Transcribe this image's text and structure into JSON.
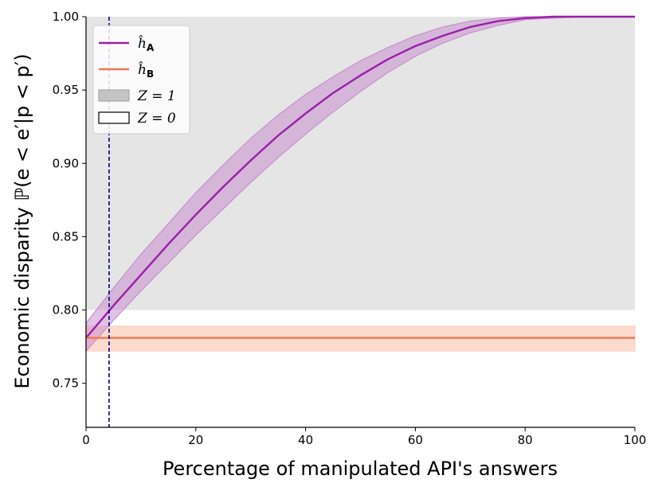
{
  "chart_data": {
    "type": "line",
    "xlabel": "Percentage of manipulated API's answers",
    "ylabel": "Economic disparity ℙ(e < e′|p < p′)",
    "xlim": [
      0,
      100
    ],
    "ylim": [
      0.72,
      1.0
    ],
    "x_ticks": [
      "0",
      "20",
      "40",
      "60",
      "80",
      "100"
    ],
    "y_ticks": [
      "0.75",
      "0.80",
      "0.85",
      "0.90",
      "0.95",
      "1.00"
    ],
    "shaded_region": {
      "label": "Z = 1",
      "x_range": [
        0,
        100
      ],
      "y_range": [
        0.8,
        1.0
      ],
      "color": "#e5e5e5"
    },
    "vertical_line": {
      "x": 4.2,
      "color": "#00007f",
      "style": "dashed"
    },
    "series": [
      {
        "name": "ĥ_A",
        "color": "#9b1fa8",
        "band_color": "#c88fcf",
        "x": [
          0,
          5,
          10,
          15,
          20,
          25,
          30,
          35,
          40,
          45,
          50,
          55,
          60,
          65,
          70,
          75,
          80,
          85,
          90,
          95,
          100
        ],
        "values": [
          0.781,
          0.803,
          0.824,
          0.845,
          0.865,
          0.884,
          0.902,
          0.919,
          0.934,
          0.948,
          0.96,
          0.971,
          0.98,
          0.987,
          0.993,
          0.997,
          0.999,
          1.0,
          1.0,
          1.0,
          1.0
        ],
        "upper": [
          0.791,
          0.815,
          0.838,
          0.859,
          0.88,
          0.899,
          0.917,
          0.933,
          0.947,
          0.959,
          0.97,
          0.979,
          0.987,
          0.993,
          0.997,
          0.999,
          1.0,
          1.0,
          1.0,
          1.0,
          1.0
        ],
        "lower": [
          0.772,
          0.793,
          0.813,
          0.832,
          0.851,
          0.869,
          0.887,
          0.904,
          0.92,
          0.935,
          0.949,
          0.962,
          0.973,
          0.982,
          0.989,
          0.994,
          0.998,
          0.999,
          1.0,
          1.0,
          1.0
        ]
      },
      {
        "name": "ĥ_B",
        "color": "#f07850",
        "band_color": "#fbd3c4",
        "x": [
          0,
          100
        ],
        "values": [
          0.781,
          0.781
        ],
        "upper": [
          0.789,
          0.789
        ],
        "lower": [
          0.772,
          0.772
        ]
      }
    ],
    "legend": {
      "position": "top-left",
      "entries": [
        {
          "label": "ĥ",
          "sub": "A",
          "kind": "line",
          "color": "#9b1fa8"
        },
        {
          "label": "ĥ",
          "sub": "B",
          "kind": "line",
          "color": "#f07850"
        },
        {
          "label": "Z = 1",
          "kind": "patch",
          "fill": "#c4c4c4",
          "stroke": "#a8a8a8"
        },
        {
          "label": "Z = 0",
          "kind": "patch",
          "fill": "#ffffff",
          "stroke": "#000000"
        }
      ]
    }
  }
}
